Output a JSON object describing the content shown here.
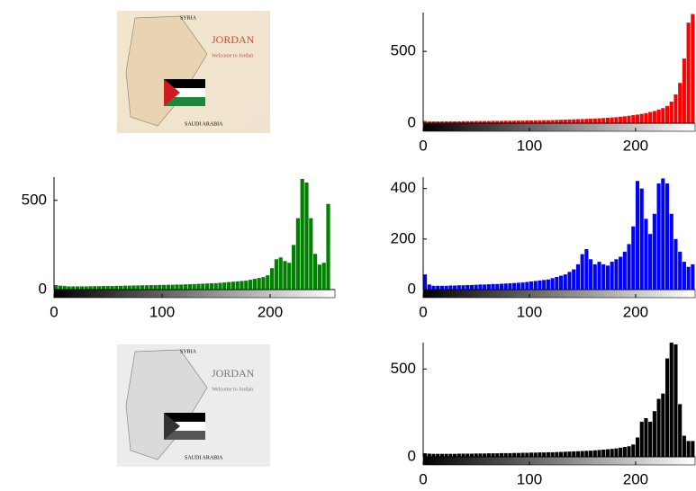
{
  "chart_data": [
    {
      "type": "histogram",
      "color": "#ff0000",
      "bins": [
        0,
        4,
        8,
        12,
        16,
        20,
        24,
        28,
        32,
        36,
        40,
        44,
        48,
        52,
        56,
        60,
        64,
        68,
        72,
        76,
        80,
        84,
        88,
        92,
        96,
        100,
        104,
        108,
        112,
        116,
        120,
        124,
        128,
        132,
        136,
        140,
        144,
        148,
        152,
        156,
        160,
        164,
        168,
        172,
        176,
        180,
        184,
        188,
        192,
        196,
        200,
        204,
        208,
        212,
        216,
        220,
        224,
        228,
        232,
        236,
        240,
        244,
        248,
        252,
        256
      ],
      "values": [
        15,
        12,
        12,
        12,
        12,
        13,
        13,
        13,
        13,
        14,
        14,
        14,
        15,
        15,
        15,
        15,
        16,
        16,
        16,
        17,
        17,
        17,
        18,
        18,
        19,
        19,
        20,
        20,
        21,
        21,
        22,
        23,
        24,
        25,
        26,
        27,
        28,
        29,
        30,
        31,
        33,
        34,
        36,
        38,
        40,
        42,
        45,
        48,
        52,
        56,
        60,
        65,
        70,
        78,
        85,
        95,
        105,
        120,
        150,
        200,
        280,
        450,
        700,
        760
      ],
      "xlim": [
        0,
        256
      ],
      "ylim": [
        0,
        770
      ],
      "xticks": [
        0,
        100,
        200
      ],
      "yticks": [
        0,
        500
      ],
      "grid": false
    },
    {
      "type": "histogram",
      "color": "#008000",
      "bins": [
        0,
        4,
        8,
        12,
        16,
        20,
        24,
        28,
        32,
        36,
        40,
        44,
        48,
        52,
        56,
        60,
        64,
        68,
        72,
        76,
        80,
        84,
        88,
        92,
        96,
        100,
        104,
        108,
        112,
        116,
        120,
        124,
        128,
        132,
        136,
        140,
        144,
        148,
        152,
        156,
        160,
        164,
        168,
        172,
        176,
        180,
        184,
        188,
        192,
        196,
        200,
        204,
        208,
        212,
        216,
        220,
        224,
        228,
        232,
        236,
        240,
        244,
        248,
        252,
        256
      ],
      "values": [
        25,
        22,
        20,
        18,
        18,
        18,
        18,
        18,
        19,
        19,
        19,
        20,
        20,
        20,
        21,
        21,
        22,
        22,
        23,
        23,
        24,
        24,
        25,
        25,
        26,
        26,
        27,
        27,
        28,
        28,
        29,
        30,
        31,
        32,
        33,
        34,
        35,
        36,
        38,
        40,
        42,
        44,
        46,
        48,
        50,
        55,
        60,
        65,
        70,
        80,
        120,
        170,
        180,
        160,
        150,
        250,
        400,
        620,
        600,
        400,
        200,
        140,
        150,
        480
      ],
      "xlim": [
        0,
        260
      ],
      "ylim": [
        0,
        630
      ],
      "xticks": [
        0,
        100,
        200
      ],
      "yticks": [
        0,
        500
      ],
      "grid": false
    },
    {
      "type": "histogram",
      "color": "#0000ff",
      "bins": [
        0,
        4,
        8,
        12,
        16,
        20,
        24,
        28,
        32,
        36,
        40,
        44,
        48,
        52,
        56,
        60,
        64,
        68,
        72,
        76,
        80,
        84,
        88,
        92,
        96,
        100,
        104,
        108,
        112,
        116,
        120,
        124,
        128,
        132,
        136,
        140,
        144,
        148,
        152,
        156,
        160,
        164,
        168,
        172,
        176,
        180,
        184,
        188,
        192,
        196,
        200,
        204,
        208,
        212,
        216,
        220,
        224,
        228,
        232,
        236,
        240,
        244,
        248,
        252,
        256
      ],
      "values": [
        60,
        20,
        15,
        15,
        15,
        15,
        16,
        16,
        17,
        17,
        18,
        18,
        19,
        20,
        20,
        21,
        22,
        22,
        23,
        24,
        25,
        26,
        27,
        28,
        30,
        32,
        34,
        36,
        38,
        40,
        45,
        50,
        55,
        60,
        70,
        80,
        100,
        140,
        160,
        120,
        100,
        110,
        100,
        95,
        110,
        120,
        130,
        150,
        180,
        250,
        430,
        400,
        280,
        220,
        300,
        420,
        440,
        420,
        300,
        200,
        150,
        110,
        90,
        100
      ],
      "xlim": [
        0,
        256
      ],
      "ylim": [
        0,
        445
      ],
      "xticks": [
        0,
        100,
        200
      ],
      "yticks": [
        0,
        200,
        400
      ],
      "grid": false
    },
    {
      "type": "histogram",
      "color": "#000000",
      "bins": [
        0,
        4,
        8,
        12,
        16,
        20,
        24,
        28,
        32,
        36,
        40,
        44,
        48,
        52,
        56,
        60,
        64,
        68,
        72,
        76,
        80,
        84,
        88,
        92,
        96,
        100,
        104,
        108,
        112,
        116,
        120,
        124,
        128,
        132,
        136,
        140,
        144,
        148,
        152,
        156,
        160,
        164,
        168,
        172,
        176,
        180,
        184,
        188,
        192,
        196,
        200,
        204,
        208,
        212,
        216,
        220,
        224,
        228,
        232,
        236,
        240,
        244,
        248,
        252,
        256
      ],
      "values": [
        20,
        18,
        17,
        17,
        17,
        17,
        17,
        17,
        18,
        18,
        18,
        18,
        19,
        19,
        19,
        20,
        20,
        20,
        21,
        21,
        21,
        22,
        22,
        23,
        23,
        24,
        24,
        25,
        25,
        26,
        26,
        27,
        28,
        29,
        30,
        31,
        32,
        33,
        34,
        35,
        37,
        39,
        41,
        43,
        45,
        48,
        52,
        56,
        60,
        70,
        110,
        200,
        220,
        200,
        260,
        330,
        360,
        560,
        650,
        640,
        300,
        120,
        90,
        90
      ],
      "xlim": [
        0,
        256
      ],
      "ylim": [
        0,
        650
      ],
      "xticks": [
        0,
        100,
        200
      ],
      "yticks": [
        0,
        500
      ],
      "grid": false
    }
  ],
  "images": [
    {
      "labels": [
        "JORDAN",
        "Welcome to Jordan",
        "SAUDI ARABIA",
        "SYRIA"
      ]
    },
    {
      "labels": [
        "JORDAN",
        "Welcome to Jordan",
        "SAUDI ARABIA",
        "SYRIA"
      ]
    }
  ]
}
